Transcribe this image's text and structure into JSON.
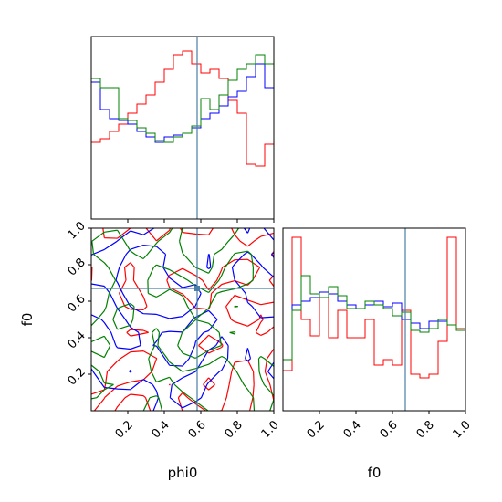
{
  "chart_data": [
    {
      "type": "histogram",
      "panel": "phi0 marginal",
      "x_range": [
        0,
        1
      ],
      "bins": 20,
      "truth": 0.58,
      "ticks": [
        0.2,
        0.4,
        0.6,
        0.8,
        1.0
      ],
      "series": [
        {
          "color": "#ff0000",
          "values": [
            0.42,
            0.44,
            0.48,
            0.52,
            0.58,
            0.63,
            0.68,
            0.75,
            0.82,
            0.9,
            0.92,
            0.85,
            0.8,
            0.82,
            0.77,
            0.65,
            0.58,
            0.3,
            0.29,
            0.41
          ]
        },
        {
          "color": "#0000ff",
          "values": [
            0.75,
            0.6,
            0.55,
            0.54,
            0.52,
            0.48,
            0.45,
            0.42,
            0.45,
            0.46,
            0.47,
            0.5,
            0.55,
            0.58,
            0.62,
            0.67,
            0.7,
            0.78,
            0.85,
            0.72
          ]
        },
        {
          "color": "#008000",
          "values": [
            0.77,
            0.72,
            0.72,
            0.55,
            0.54,
            0.5,
            0.47,
            0.43,
            0.42,
            0.45,
            0.47,
            0.51,
            0.66,
            0.6,
            0.68,
            0.76,
            0.82,
            0.85,
            0.9,
            0.85
          ]
        }
      ]
    },
    {
      "type": "contour",
      "panel": "phi0 vs f0",
      "x_range": [
        0,
        1
      ],
      "y_range": [
        0,
        1
      ],
      "truth": {
        "x": 0.58,
        "y": 0.67
      },
      "xticks": [
        0.2,
        0.4,
        0.6,
        0.8,
        1.0
      ],
      "yticks": [
        0.2,
        0.4,
        0.6,
        0.8,
        1.0
      ],
      "xlabel": "phi0",
      "ylabel": "f0",
      "series_colors": [
        "#ff0000",
        "#0000ff",
        "#008000"
      ]
    },
    {
      "type": "histogram",
      "panel": "f0 marginal",
      "x_range": [
        0,
        1
      ],
      "bins": 20,
      "truth": 0.67,
      "ticks": [
        0.2,
        0.4,
        0.6,
        0.8,
        1.0
      ],
      "xlabel": "f0",
      "series": [
        {
          "color": "#ff0000",
          "values": [
            0.22,
            0.95,
            0.5,
            0.41,
            0.65,
            0.4,
            0.55,
            0.4,
            0.4,
            0.5,
            0.25,
            0.28,
            0.25,
            0.55,
            0.2,
            0.18,
            0.2,
            0.38,
            0.95,
            0.45
          ]
        },
        {
          "color": "#0000ff",
          "values": [
            0.28,
            0.58,
            0.6,
            0.62,
            0.65,
            0.64,
            0.6,
            0.58,
            0.56,
            0.58,
            0.6,
            0.57,
            0.59,
            0.5,
            0.48,
            0.45,
            0.49,
            0.49,
            0.47,
            0.44
          ]
        },
        {
          "color": "#008000",
          "values": [
            0.28,
            0.55,
            0.74,
            0.64,
            0.62,
            0.68,
            0.63,
            0.56,
            0.56,
            0.6,
            0.58,
            0.56,
            0.52,
            0.54,
            0.44,
            0.43,
            0.45,
            0.5,
            0.47,
            0.44
          ]
        }
      ]
    }
  ]
}
